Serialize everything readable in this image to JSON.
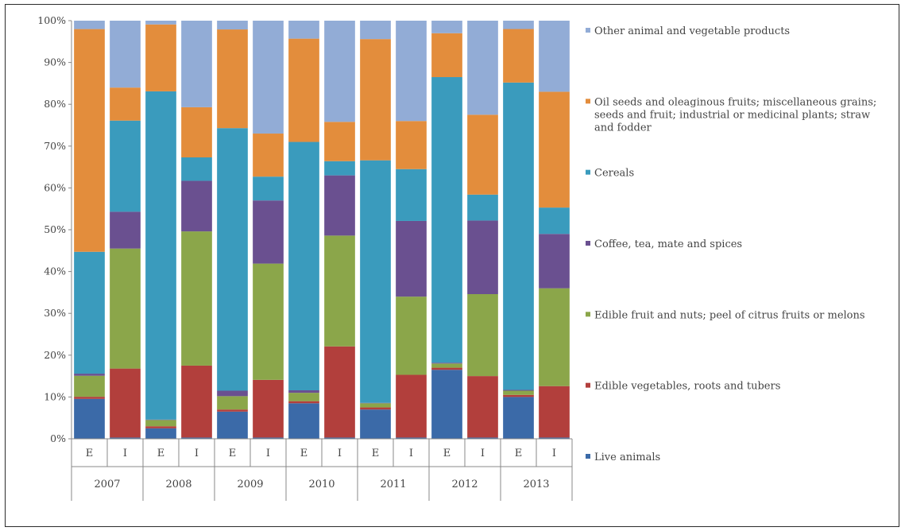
{
  "chart_data": {
    "type": "bar",
    "stacked": true,
    "percent_stacked": true,
    "title": "",
    "xlabel": "",
    "ylabel": "",
    "ylim": [
      0,
      100
    ],
    "y_ticks": [
      "0%",
      "10%",
      "20%",
      "30%",
      "40%",
      "50%",
      "60%",
      "70%",
      "80%",
      "90%",
      "100%"
    ],
    "grid": false,
    "legend_position": "right",
    "groups": [
      "2007",
      "2008",
      "2009",
      "2010",
      "2011",
      "2012",
      "2013"
    ],
    "categories": [
      "E",
      "I",
      "E",
      "I",
      "E",
      "I",
      "E",
      "I",
      "E",
      "I",
      "E",
      "I",
      "E",
      "I"
    ],
    "series": [
      {
        "name": "Live animals",
        "color": "#3b6aa8",
        "values": [
          9.5,
          0.3,
          2.5,
          0.3,
          6.5,
          0.3,
          8.5,
          0.3,
          7,
          0.3,
          16.5,
          0.3,
          10,
          0.3
        ]
      },
      {
        "name": "Edible vegetables, roots and tubers",
        "color": "#b23f3c",
        "values": [
          0.5,
          16.5,
          0.5,
          17.2,
          0.5,
          13.8,
          0.5,
          21.8,
          0.5,
          15,
          0.5,
          14.7,
          0.5,
          12.3
        ]
      },
      {
        "name": "Edible fruit and nuts; peel of citrus fruits or melons",
        "color": "#8ba64a",
        "values": [
          5,
          28.7,
          1.5,
          32.1,
          3.2,
          27.8,
          2,
          26.5,
          1,
          18.7,
          1,
          19.6,
          1,
          23.4
        ]
      },
      {
        "name": "Coffee, tea, mate and spices",
        "color": "#6a5090",
        "values": [
          0.5,
          8.8,
          0.1,
          12.1,
          1.3,
          15.1,
          0.6,
          14.4,
          0.1,
          18.1,
          0.2,
          17.6,
          0.2,
          13
        ]
      },
      {
        "name": "Cereals",
        "color": "#3a9bbd",
        "values": [
          29,
          21.8,
          78.5,
          5.6,
          62.8,
          5.7,
          59.4,
          3.4,
          58,
          12.4,
          68.3,
          6.2,
          73.5,
          6.3
        ]
      },
      {
        "name": "Oil seeds and oleaginous fruits; miscellaneous grains; seeds and fruit; industrial or medicinal plants; straw and fodder",
        "color": "#e38d3c",
        "values": [
          53,
          7.9,
          16,
          12,
          23.6,
          10.3,
          24.7,
          9.4,
          29,
          11.5,
          10.5,
          19.1,
          12.8,
          27.7
        ]
      },
      {
        "name": "Other animal and vegetable products",
        "color": "#92acd6",
        "values": [
          2,
          16,
          0.9,
          20.7,
          2.1,
          27,
          4.3,
          24.2,
          4.4,
          24,
          3,
          22.5,
          2,
          17
        ]
      }
    ]
  }
}
